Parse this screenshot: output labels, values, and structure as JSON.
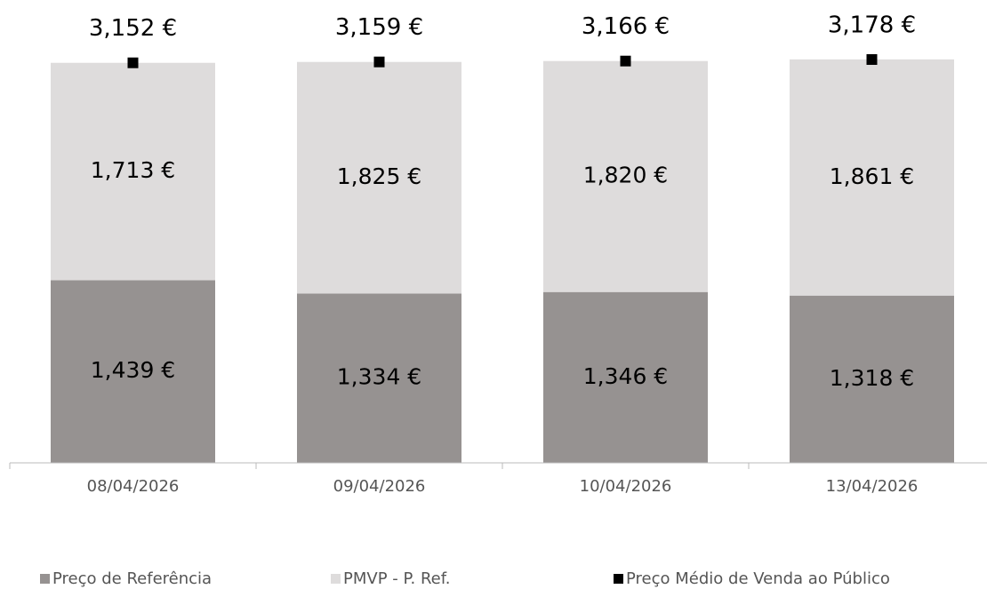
{
  "chart_data": {
    "type": "bar",
    "stacked": true,
    "categories": [
      "08/04/2026",
      "09/04/2026",
      "10/04/2026",
      "13/04/2026"
    ],
    "series": [
      {
        "name": "Preço de Referência",
        "color": "#969291",
        "values": [
          1.439,
          1.334,
          1.346,
          1.318
        ],
        "value_labels": [
          "1,439 €",
          "1,334 €",
          "1,346 €",
          "1,318 €"
        ]
      },
      {
        "name": "PMVP - P. Ref.",
        "color": "#dedcdc",
        "values": [
          1.713,
          1.825,
          1.82,
          1.861
        ],
        "value_labels": [
          "1,713 €",
          "1,825 €",
          "1,820 €",
          "1,861 €"
        ]
      },
      {
        "name": "Preço Médio de Venda ao Público",
        "color": "#000000",
        "type": "scatter",
        "marker": "square",
        "values": [
          3.152,
          3.159,
          3.166,
          3.178
        ],
        "value_labels": [
          "3,152 €",
          "3,159 €",
          "3,166 €",
          "3,178 €"
        ]
      }
    ],
    "ylim": [
      0,
      3.5
    ],
    "legend": "bottom"
  }
}
